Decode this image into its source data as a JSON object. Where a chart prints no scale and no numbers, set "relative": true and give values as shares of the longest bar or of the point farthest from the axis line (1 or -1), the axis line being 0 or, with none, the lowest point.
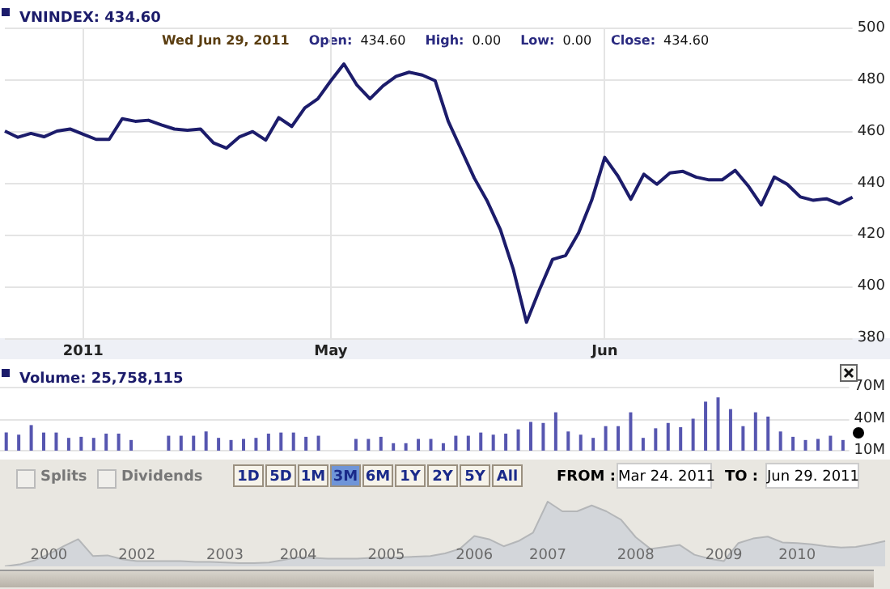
{
  "chart_data": [
    {
      "type": "line",
      "title": "VNINDEX: 434.60",
      "annotations": [
        "Wed Jun 29, 2011",
        "Open:",
        "434.60",
        "High:",
        "0.00",
        "Low:",
        "0.00",
        "Close:",
        "434.60"
      ],
      "categories": [
        null,
        null,
        null,
        null,
        null,
        null,
        "2011",
        null,
        null,
        null,
        null,
        null,
        null,
        null,
        null,
        null,
        null,
        null,
        null,
        null,
        null,
        null,
        null,
        null,
        null,
        "May",
        null,
        null,
        null,
        null,
        null,
        null,
        null,
        null,
        null,
        null,
        null,
        null,
        null,
        null,
        null,
        null,
        null,
        null,
        null,
        null,
        "Jun",
        null,
        null,
        null,
        null,
        null,
        null,
        null,
        null,
        null,
        null,
        null,
        null,
        null,
        null,
        null,
        null,
        null,
        null,
        null
      ],
      "values": [
        460.2,
        457.8,
        459.3,
        458,
        460.2,
        461,
        459,
        457,
        457,
        465,
        464,
        464.4,
        462.6,
        461,
        460.5,
        461,
        455.6,
        453.6,
        458,
        460,
        456.7,
        465.4,
        462,
        469.2,
        472.7,
        479.7,
        486.2,
        478,
        472.7,
        477.7,
        481.4,
        483,
        481.9,
        479.7,
        464,
        453,
        442,
        433,
        422,
        406.5,
        386.2,
        398.8,
        410.5,
        412,
        420.8,
        433.4,
        450,
        442.9,
        433.8,
        443.5,
        439.6,
        444,
        444.6,
        442.4,
        441.3,
        441.3,
        445,
        439,
        431.6,
        442.4,
        439.6,
        434.7,
        433.4,
        434,
        432,
        434.6
      ],
      "color": "#1c1c6b",
      "ylim": [
        380,
        500
      ],
      "yticks": [
        380,
        400,
        420,
        440,
        460,
        480,
        500
      ],
      "grid": true
    },
    {
      "type": "bar",
      "title": "Volume: 25,758,115",
      "categories": [
        null,
        null,
        null,
        null,
        null,
        null,
        null,
        null,
        null,
        null,
        null,
        null,
        null,
        null,
        null,
        null,
        null,
        null,
        null,
        null,
        null,
        null,
        null,
        null,
        null,
        null,
        null,
        null,
        null,
        null,
        null,
        null,
        null,
        null,
        null,
        null,
        null,
        null,
        null,
        null,
        null,
        null,
        null,
        null,
        null,
        null,
        null,
        null,
        null,
        null,
        null,
        null,
        null,
        null,
        null,
        null,
        null,
        null,
        null,
        null,
        null,
        null,
        null,
        null,
        null,
        null,
        null,
        null
      ],
      "values": [
        27,
        25,
        34,
        27,
        27,
        22,
        23,
        22,
        26,
        26,
        20,
        null,
        null,
        24,
        24,
        24,
        28,
        22,
        20,
        21,
        22,
        26,
        27,
        27,
        23,
        24,
        null,
        null,
        21,
        21,
        23,
        17,
        17,
        21,
        21,
        17,
        24,
        24,
        27,
        25,
        26,
        30,
        37,
        36,
        46,
        28,
        25,
        22,
        33,
        33,
        46,
        22,
        31,
        36,
        32,
        40,
        56,
        60,
        49,
        33,
        46,
        42,
        28,
        23,
        20,
        21,
        24,
        20
      ],
      "color": "#5656b0",
      "ylim": [
        10,
        70
      ],
      "yticks": [
        {
          "value": 10,
          "label": "10M"
        },
        {
          "value": 40,
          "label": "40M"
        },
        {
          "value": 70,
          "label": "70M"
        }
      ],
      "grid": "y",
      "tick_labels": "y"
    },
    {
      "type": "area",
      "relative": true,
      "annotations": [
        "Splits",
        "Dividends",
        "1D",
        "5D",
        "1M",
        "3M",
        "6M",
        "1Y",
        "2Y",
        "5Y",
        "All",
        "FROM :",
        "Mar 24. 2011",
        "TO :",
        "Jun 29. 2011"
      ],
      "categories": [
        null,
        null,
        null,
        "2000",
        null,
        null,
        null,
        null,
        null,
        "2002",
        null,
        null,
        null,
        null,
        null,
        "2003",
        null,
        null,
        null,
        null,
        "2004",
        null,
        null,
        null,
        null,
        null,
        "2005",
        null,
        null,
        null,
        null,
        null,
        "2006",
        null,
        null,
        null,
        null,
        "2007",
        null,
        null,
        null,
        null,
        null,
        "2008",
        null,
        null,
        null,
        null,
        null,
        "2009",
        null,
        null,
        null,
        null,
        "2010",
        null,
        null,
        null,
        null,
        null,
        null
      ],
      "values": [
        0,
        0.03,
        0.09,
        0.19,
        0.31,
        0.42,
        0.16,
        0.17,
        0.11,
        0.08,
        0.08,
        0.08,
        0.08,
        0.07,
        0.07,
        0.06,
        0.05,
        0.05,
        0.06,
        0.1,
        0.14,
        0.13,
        0.12,
        0.12,
        0.12,
        0.13,
        0.13,
        0.14,
        0.15,
        0.16,
        0.2,
        0.27,
        0.47,
        0.42,
        0.31,
        0.39,
        0.52,
        1,
        0.85,
        0.85,
        0.94,
        0.85,
        0.72,
        0.45,
        0.27,
        0.3,
        0.33,
        0.18,
        0.12,
        0.08,
        0.36,
        0.43,
        0.46,
        0.37,
        0.36,
        0.34,
        0.31,
        0.29,
        0.3,
        0.34,
        0.39
      ],
      "color": "#d3d6da",
      "tick_labels": "x"
    }
  ]
}
